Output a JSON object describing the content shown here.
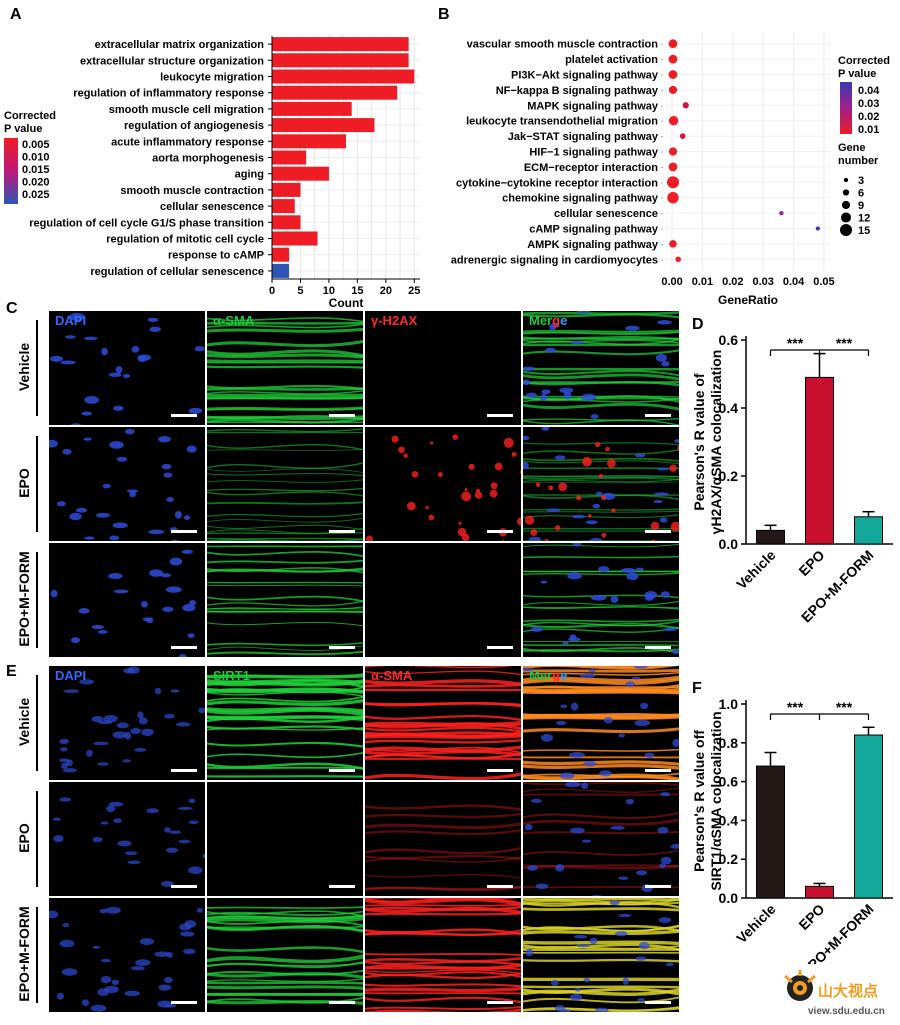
{
  "panels": {
    "A": "A",
    "B": "B",
    "C": "C",
    "D": "D",
    "E": "E",
    "F": "F"
  },
  "chart_data": [
    {
      "panel": "A",
      "type": "bar",
      "orientation": "horizontal",
      "categories": [
        "extracellular matrix organization",
        "extracellular structure organization",
        "leukocyte migration",
        "regulation of inflammatory response",
        "smooth muscle cell migration",
        "regulation of angiogenesis",
        "acute inflammatory response",
        "aorta morphogenesis",
        "aging",
        "smooth muscle contraction",
        "cellular senescence",
        "regulation of cell cycle G1/S phase transition",
        "regulation of mitotic cell cycle",
        "response to cAMP",
        "regulation of cellular senescence"
      ],
      "values": [
        24,
        24,
        25,
        22,
        14,
        18,
        13,
        6,
        10,
        5,
        4,
        5,
        8,
        3,
        3
      ],
      "colors": [
        "#ee1c24",
        "#ee1c24",
        "#ee1c24",
        "#ee1c24",
        "#ee1c24",
        "#ee1c24",
        "#ee1c24",
        "#ee1c24",
        "#ee1c24",
        "#ee1c24",
        "#ee1c24",
        "#ee1c24",
        "#ee1c24",
        "#ee1c24",
        "#2e55b5"
      ],
      "xlabel": "Count",
      "xticks": [
        "0",
        "5",
        "10",
        "15",
        "20",
        "25"
      ],
      "xlim": [
        0,
        26
      ],
      "legend_title": [
        "Corrected",
        "P value"
      ],
      "legend_ticks": [
        "0.005",
        "0.010",
        "0.015",
        "0.020",
        "0.025"
      ],
      "legend_placement": "left"
    },
    {
      "panel": "B",
      "type": "scatter",
      "categories": [
        "vascular smooth muscle contraction",
        "platelet activation",
        "PI3K−Akt signaling pathway",
        "NF−kappa B signaling pathway",
        "MAPK signaling pathway",
        "leukocyte transendothelial migration",
        "Jak−STAT signaling pathway",
        "HIF−1 signaling pathway",
        "ECM−receptor interaction",
        "cytokine−cytokine receptor interaction",
        "chemokine signaling pathway",
        "cellular senescence",
        "cAMP signaling pathway",
        "AMPK signaling pathway",
        "adrenergic signaling in cardiomyocytes"
      ],
      "x": [
        0.0003,
        0.0003,
        0.0003,
        0.0003,
        0.0045,
        0.0005,
        0.0035,
        0.0003,
        0.0003,
        0.0003,
        0.0003,
        0.036,
        0.048,
        0.0003,
        0.002
      ],
      "sizes": [
        10,
        10,
        10,
        9,
        6,
        11,
        5,
        9,
        10,
        15,
        14,
        3,
        3,
        8,
        5
      ],
      "colors": [
        "#ee1c24",
        "#ee1c24",
        "#ee1c24",
        "#ee1c24",
        "#d4143c",
        "#ee1c24",
        "#d4143c",
        "#ee1c24",
        "#ee1c24",
        "#ee1c24",
        "#ee1c24",
        "#a0208a",
        "#3a3ab0",
        "#ee1c24",
        "#ee1c24"
      ],
      "xlabel": "GeneRatio",
      "xticks": [
        "0.00",
        "0.01",
        "0.02",
        "0.03",
        "0.04",
        "0.05"
      ],
      "xlim": [
        -0.002,
        0.052
      ],
      "legend_title": [
        "Corrected",
        "P value"
      ],
      "legend_ticks": [
        "0.04",
        "0.03",
        "0.02",
        "0.01"
      ],
      "size_legend_title": [
        "Gene",
        "number"
      ],
      "size_legend": [
        "3",
        "6",
        "9",
        "12",
        "15"
      ],
      "legend_placement": "right"
    },
    {
      "panel": "D",
      "type": "bar",
      "categories": [
        "Vehicle",
        "EPO",
        "EPO+M-FORM"
      ],
      "values": [
        0.04,
        0.49,
        0.08
      ],
      "errors": [
        0.015,
        0.07,
        0.015
      ],
      "colors": [
        "#231815",
        "#c8102e",
        "#12a89a"
      ],
      "ylabel": [
        "Pearson's R value of",
        "γH2AX/αSMA colocalization"
      ],
      "yticks": [
        "0.0",
        "0.2",
        "0.4",
        "0.6"
      ],
      "ylim": [
        0,
        0.6
      ],
      "significance": [
        "***",
        "***"
      ]
    },
    {
      "panel": "F",
      "type": "bar",
      "categories": [
        "Vehicle",
        "EPO",
        "EPO+M-FORM"
      ],
      "values": [
        0.68,
        0.06,
        0.84
      ],
      "errors": [
        0.07,
        0.015,
        0.04
      ],
      "colors": [
        "#231815",
        "#c8102e",
        "#12a89a"
      ],
      "ylabel": [
        "Pearson's R value off",
        "SIRT1/αSMA colocalization"
      ],
      "yticks": [
        "0.0",
        "0.2",
        "0.4",
        "0.6",
        "0.8",
        "1.0"
      ],
      "ylim": [
        0,
        1.0
      ],
      "significance": [
        "***",
        "***"
      ]
    }
  ],
  "panel_C": {
    "columns": [
      {
        "label": "DAPI",
        "color": "#2e6cff"
      },
      {
        "label": "α-SMA",
        "color": "#22c53c"
      },
      {
        "label": "γ-H2AX",
        "color": "#ff2a2a"
      },
      {
        "label_parts": [
          "Mer",
          "g",
          "e"
        ],
        "colors": [
          "#22c53c",
          "#ff2a2a",
          "#2e9cff"
        ]
      }
    ],
    "rows": [
      "Vehicle",
      "EPO",
      "EPO+M-FORM"
    ]
  },
  "panel_E": {
    "columns": [
      {
        "label": "DAPI",
        "color": "#2e6cff"
      },
      {
        "label": "SIRT1",
        "color": "#22c53c"
      },
      {
        "label": "α-SMA",
        "color": "#ff2a2a"
      },
      {
        "label_parts": [
          "Mer",
          "g",
          "e"
        ],
        "colors": [
          "#22c53c",
          "#ff2a2a",
          "#2e9cff"
        ]
      }
    ],
    "rows": [
      "Vehicle",
      "EPO",
      "EPO+M-FORM"
    ]
  },
  "watermark": {
    "cn": "山大视点",
    "url": "view.sdu.edu.cn"
  },
  "colors": {
    "blue_tile": "#000814",
    "green": "#1fd23a",
    "red": "#ff2020"
  }
}
